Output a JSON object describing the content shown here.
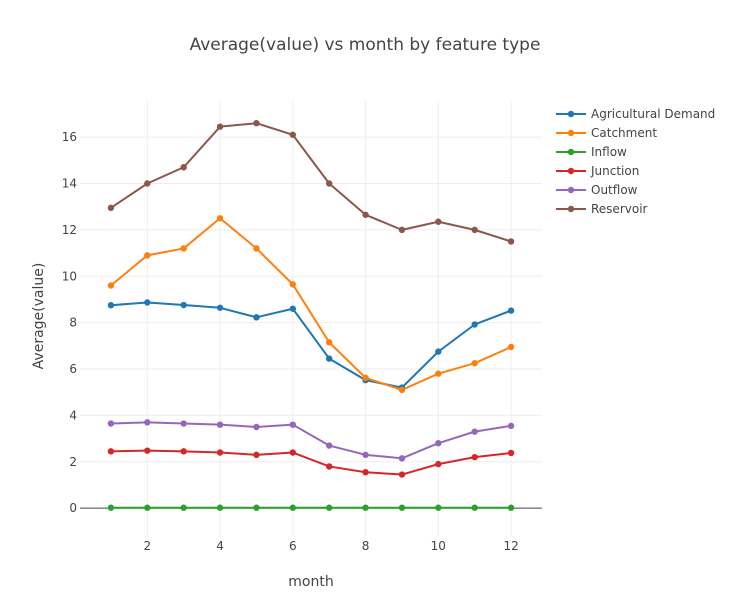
{
  "chart_data": {
    "type": "line",
    "title": "Average(value) vs month by feature type",
    "xlabel": "month",
    "ylabel": "Average(value)",
    "xlim": [
      0.15,
      12.85
    ],
    "ylim": [
      -1.2,
      17.6
    ],
    "xticks": [
      2,
      4,
      6,
      8,
      10,
      12
    ],
    "yticks": [
      0,
      2,
      4,
      6,
      8,
      10,
      12,
      14,
      16
    ],
    "grid": true,
    "legend_position": "top-right",
    "x": [
      1,
      2,
      3,
      4,
      5,
      6,
      7,
      8,
      9,
      10,
      11,
      12
    ],
    "series": [
      {
        "name": "Agricultural Demand",
        "color": "#1f77b4",
        "values": [
          8.75,
          8.87,
          8.76,
          8.64,
          8.23,
          8.6,
          6.45,
          5.52,
          5.2,
          6.75,
          7.92,
          8.52
        ]
      },
      {
        "name": "Catchment",
        "color": "#ff7f0e",
        "values": [
          9.6,
          10.9,
          11.2,
          12.5,
          11.2,
          9.65,
          7.15,
          5.62,
          5.1,
          5.8,
          6.25,
          6.95
        ]
      },
      {
        "name": "Inflow",
        "color": "#2ca02c",
        "values": [
          0.02,
          0.02,
          0.02,
          0.02,
          0.02,
          0.02,
          0.02,
          0.02,
          0.02,
          0.02,
          0.02,
          0.02
        ]
      },
      {
        "name": "Junction",
        "color": "#d62728",
        "values": [
          2.45,
          2.48,
          2.45,
          2.4,
          2.3,
          2.4,
          1.8,
          1.55,
          1.45,
          1.9,
          2.2,
          2.38
        ]
      },
      {
        "name": "Outflow",
        "color": "#9467bd",
        "values": [
          3.65,
          3.7,
          3.65,
          3.6,
          3.5,
          3.6,
          2.7,
          2.3,
          2.15,
          2.8,
          3.3,
          3.55
        ]
      },
      {
        "name": "Reservoir",
        "color": "#8c564b",
        "values": [
          12.95,
          14.0,
          14.7,
          16.45,
          16.6,
          16.1,
          14.0,
          12.65,
          12.0,
          12.35,
          12.0,
          11.5
        ]
      }
    ]
  }
}
